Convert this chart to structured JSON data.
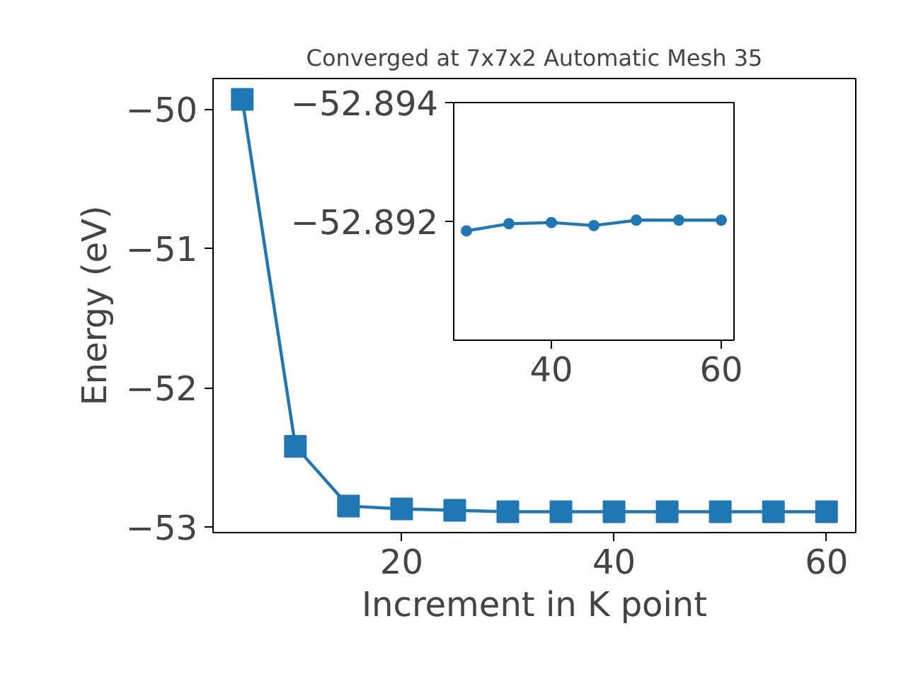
{
  "chart_data": [
    {
      "type": "line",
      "title": "Converged at 7x7x2 Automatic Mesh 35",
      "xlabel": "Increment in K point",
      "ylabel": "Energy (eV)",
      "x": [
        5,
        10,
        15,
        20,
        25,
        30,
        35,
        40,
        45,
        50,
        55,
        60
      ],
      "series": [
        {
          "color": "#1f77b4",
          "values": [
            -49.93,
            -52.42,
            -52.85,
            -52.87,
            -52.88,
            -52.89,
            -52.89,
            -52.89,
            -52.89,
            -52.89,
            -52.89,
            -52.89
          ]
        }
      ],
      "xlim": [
        2.25,
        62.75
      ],
      "ylim": [
        -53.04,
        -49.78
      ],
      "xticks": [
        20,
        40,
        60
      ],
      "yticks": [
        {
          "value": -53,
          "label": "−53"
        },
        {
          "value": -52,
          "label": "−52"
        },
        {
          "value": -51,
          "label": "−51"
        },
        {
          "value": -50,
          "label": "−50"
        }
      ],
      "grid": false,
      "marker": "square",
      "line_style": "solid"
    },
    {
      "type": "line",
      "x": [
        30,
        35,
        40,
        45,
        50,
        55,
        60
      ],
      "series": [
        {
          "color": "#1f77b4",
          "values": [
            -52.89184,
            -52.89196,
            -52.89198,
            -52.89193,
            -52.89202,
            -52.89202,
            -52.89202
          ]
        }
      ],
      "xlim": [
        28.5,
        61.5
      ],
      "ylim": [
        -52.89,
        -52.894
      ],
      "xticks": [
        40,
        60
      ],
      "yticks": [
        {
          "value": -52.894,
          "label": "−52.894"
        },
        {
          "value": -52.892,
          "label": "−52.892"
        }
      ],
      "grid": false,
      "marker": "circle",
      "line_style": "solid"
    }
  ]
}
